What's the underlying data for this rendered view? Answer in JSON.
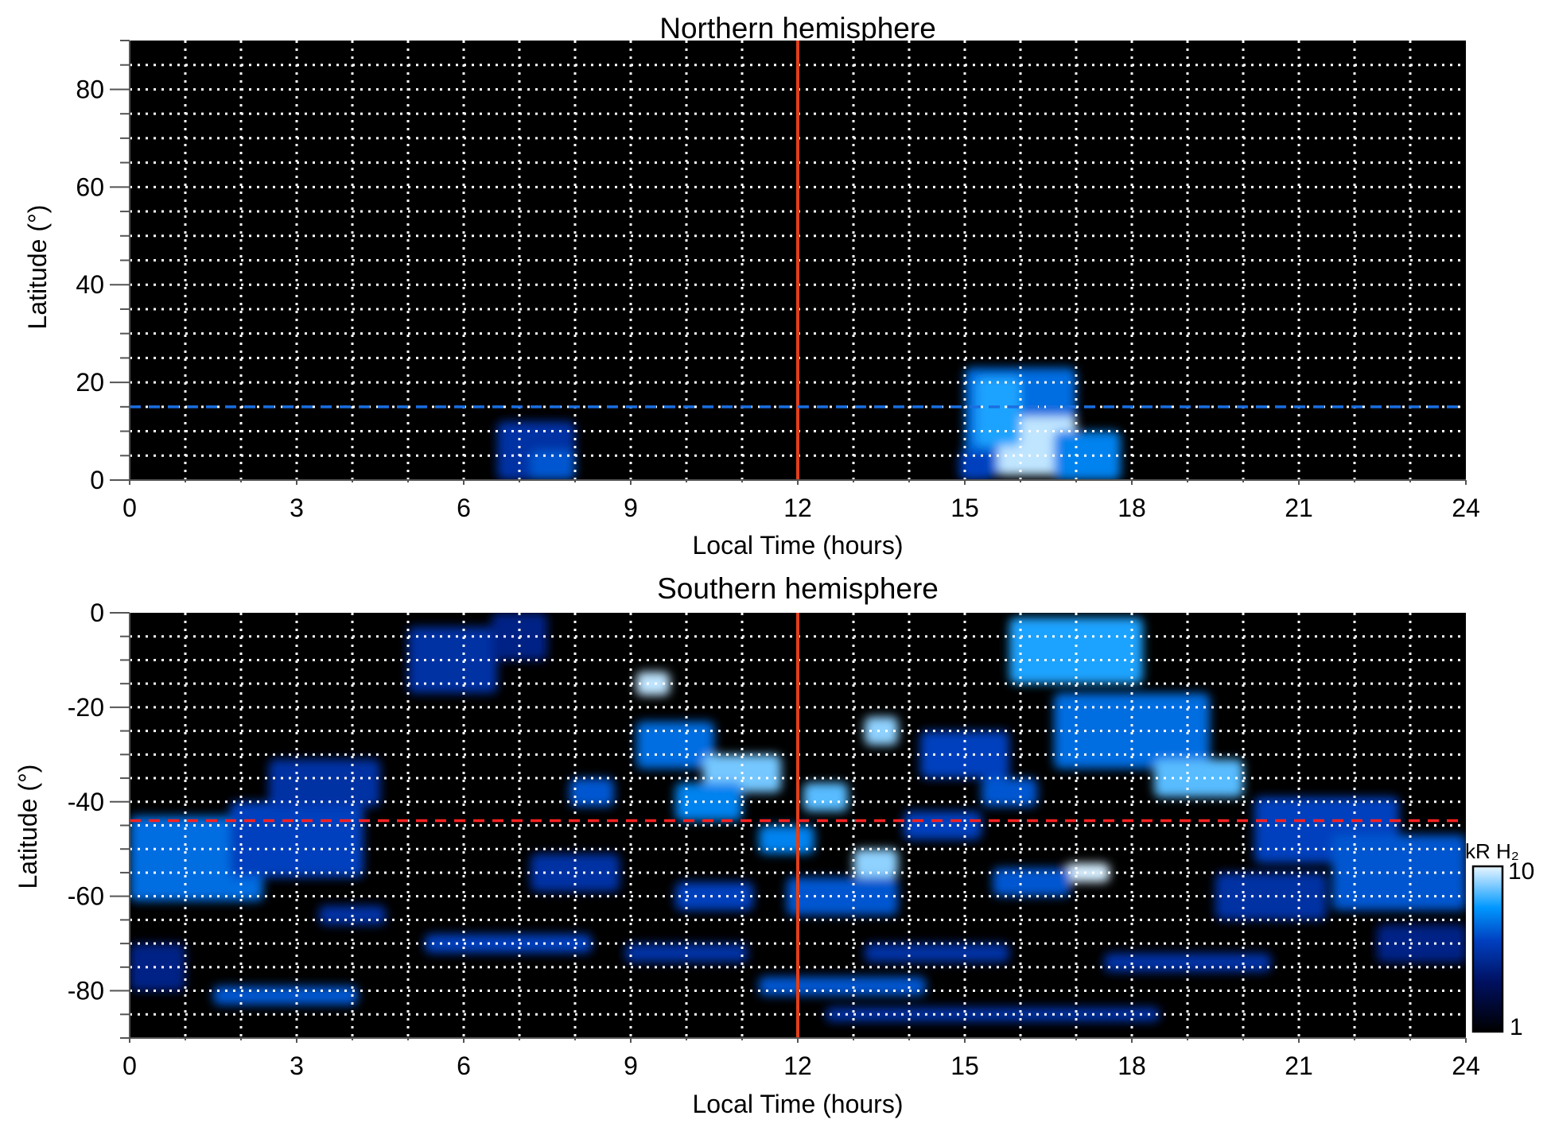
{
  "chart_data": [
    {
      "type": "heatmap",
      "title": "Northern hemisphere",
      "xlabel": "Local Time (hours)",
      "ylabel": "Latitude (°)",
      "xlim": [
        0,
        24
      ],
      "ylim": [
        0,
        90
      ],
      "xticks": [
        "0",
        "3",
        "6",
        "9",
        "12",
        "15",
        "18",
        "21",
        "24"
      ],
      "yticks": [
        "0",
        "20",
        "40",
        "60",
        "80"
      ],
      "ytick_values": [
        0,
        20,
        40,
        60,
        80
      ],
      "grid": true,
      "reference_lines": [
        {
          "orientation": "vertical",
          "value": 12,
          "color": "#e0401a",
          "style": "solid"
        },
        {
          "orientation": "horizontal",
          "value": 15,
          "color": "#1a6ee0",
          "style": "dashed"
        }
      ],
      "patches": [
        {
          "lt": 7.3,
          "lat": 6,
          "w": 1.4,
          "h": 12,
          "v": 3.0
        },
        {
          "lt": 7.6,
          "lat": 3,
          "w": 0.8,
          "h": 6,
          "v": 4.0
        },
        {
          "lt": 16.0,
          "lat": 12,
          "w": 2.0,
          "h": 22,
          "v": 4.5
        },
        {
          "lt": 16.3,
          "lat": 7,
          "w": 1.4,
          "h": 12,
          "v": 9.0
        },
        {
          "lt": 15.6,
          "lat": 14,
          "w": 0.8,
          "h": 14,
          "v": 6.0
        },
        {
          "lt": 17.2,
          "lat": 5,
          "w": 1.2,
          "h": 10,
          "v": 5.0
        },
        {
          "lt": 15.2,
          "lat": 3,
          "w": 0.6,
          "h": 6,
          "v": 3.5
        }
      ]
    },
    {
      "type": "heatmap",
      "title": "Southern hemisphere",
      "xlabel": "Local Time (hours)",
      "ylabel": "Latitude (°)",
      "xlim": [
        0,
        24
      ],
      "ylim": [
        -90,
        0
      ],
      "xticks": [
        "0",
        "3",
        "6",
        "9",
        "12",
        "15",
        "18",
        "21",
        "24"
      ],
      "yticks": [
        "0",
        "-20",
        "-40",
        "-60",
        "-80"
      ],
      "ytick_values": [
        0,
        -20,
        -40,
        -60,
        -80
      ],
      "grid": true,
      "reference_lines": [
        {
          "orientation": "vertical",
          "value": 12,
          "color": "#e0401a",
          "style": "solid"
        },
        {
          "orientation": "horizontal",
          "value": -44,
          "color": "#ff2020",
          "style": "dashed"
        }
      ],
      "colorbar": {
        "label": "kR H₂",
        "min_label": "1",
        "max_label": "10",
        "min": 1,
        "max": 10,
        "scale": "log"
      },
      "patches": [
        {
          "lt": 1.2,
          "lat": -52,
          "w": 2.4,
          "h": 18,
          "v": 4.5
        },
        {
          "lt": 3.0,
          "lat": -48,
          "w": 2.4,
          "h": 16,
          "v": 3.5
        },
        {
          "lt": 3.5,
          "lat": -36,
          "w": 2.0,
          "h": 10,
          "v": 3.0
        },
        {
          "lt": 5.8,
          "lat": -10,
          "w": 1.6,
          "h": 14,
          "v": 3.0
        },
        {
          "lt": 7.0,
          "lat": -5,
          "w": 1.0,
          "h": 10,
          "v": 2.5
        },
        {
          "lt": 2.8,
          "lat": -81,
          "w": 2.6,
          "h": 4,
          "v": 4.0
        },
        {
          "lt": 6.8,
          "lat": -70,
          "w": 3.0,
          "h": 4,
          "v": 3.5
        },
        {
          "lt": 9.4,
          "lat": -15,
          "w": 0.6,
          "h": 5,
          "v": 9.0
        },
        {
          "lt": 9.8,
          "lat": -28,
          "w": 1.4,
          "h": 10,
          "v": 4.5
        },
        {
          "lt": 11.0,
          "lat": -34,
          "w": 1.4,
          "h": 8,
          "v": 7.5
        },
        {
          "lt": 10.4,
          "lat": -40,
          "w": 1.2,
          "h": 8,
          "v": 5.0
        },
        {
          "lt": 12.5,
          "lat": -39,
          "w": 0.8,
          "h": 6,
          "v": 7.0
        },
        {
          "lt": 13.5,
          "lat": -25,
          "w": 0.6,
          "h": 6,
          "v": 8.0
        },
        {
          "lt": 13.4,
          "lat": -53,
          "w": 0.8,
          "h": 6,
          "v": 8.0
        },
        {
          "lt": 12.8,
          "lat": -60,
          "w": 2.0,
          "h": 8,
          "v": 4.0
        },
        {
          "lt": 8.3,
          "lat": -38,
          "w": 0.8,
          "h": 6,
          "v": 4.0
        },
        {
          "lt": 8.0,
          "lat": -55,
          "w": 1.6,
          "h": 8,
          "v": 3.0
        },
        {
          "lt": 15.0,
          "lat": -30,
          "w": 1.6,
          "h": 10,
          "v": 3.5
        },
        {
          "lt": 17.0,
          "lat": -8,
          "w": 2.4,
          "h": 14,
          "v": 6.0
        },
        {
          "lt": 18.0,
          "lat": -25,
          "w": 2.8,
          "h": 16,
          "v": 4.5
        },
        {
          "lt": 19.2,
          "lat": -35,
          "w": 1.6,
          "h": 8,
          "v": 7.0
        },
        {
          "lt": 17.2,
          "lat": -55,
          "w": 0.8,
          "h": 4,
          "v": 9.5
        },
        {
          "lt": 16.2,
          "lat": -57,
          "w": 1.4,
          "h": 6,
          "v": 4.0
        },
        {
          "lt": 21.5,
          "lat": -46,
          "w": 2.6,
          "h": 14,
          "v": 3.5
        },
        {
          "lt": 22.8,
          "lat": -55,
          "w": 2.4,
          "h": 16,
          "v": 4.0
        },
        {
          "lt": 20.5,
          "lat": -60,
          "w": 2.0,
          "h": 10,
          "v": 3.0
        },
        {
          "lt": 12.8,
          "lat": -79,
          "w": 3.0,
          "h": 4,
          "v": 4.0
        },
        {
          "lt": 15.5,
          "lat": -85,
          "w": 6.0,
          "h": 3,
          "v": 3.0
        },
        {
          "lt": 14.5,
          "lat": -72,
          "w": 2.6,
          "h": 4,
          "v": 3.0
        },
        {
          "lt": 19.0,
          "lat": -74,
          "w": 3.0,
          "h": 4,
          "v": 3.0
        },
        {
          "lt": 10.0,
          "lat": -72,
          "w": 2.2,
          "h": 4,
          "v": 3.0
        },
        {
          "lt": 11.8,
          "lat": -48,
          "w": 1.0,
          "h": 6,
          "v": 5.0
        },
        {
          "lt": 10.5,
          "lat": -60,
          "w": 1.4,
          "h": 6,
          "v": 3.5
        },
        {
          "lt": 14.6,
          "lat": -45,
          "w": 1.4,
          "h": 6,
          "v": 3.5
        },
        {
          "lt": 15.8,
          "lat": -38,
          "w": 1.0,
          "h": 6,
          "v": 4.0
        },
        {
          "lt": 0.5,
          "lat": -75,
          "w": 1.0,
          "h": 10,
          "v": 2.5
        },
        {
          "lt": 23.2,
          "lat": -70,
          "w": 1.6,
          "h": 8,
          "v": 2.5
        },
        {
          "lt": 4.0,
          "lat": -64,
          "w": 1.2,
          "h": 4,
          "v": 3.0
        }
      ]
    }
  ]
}
